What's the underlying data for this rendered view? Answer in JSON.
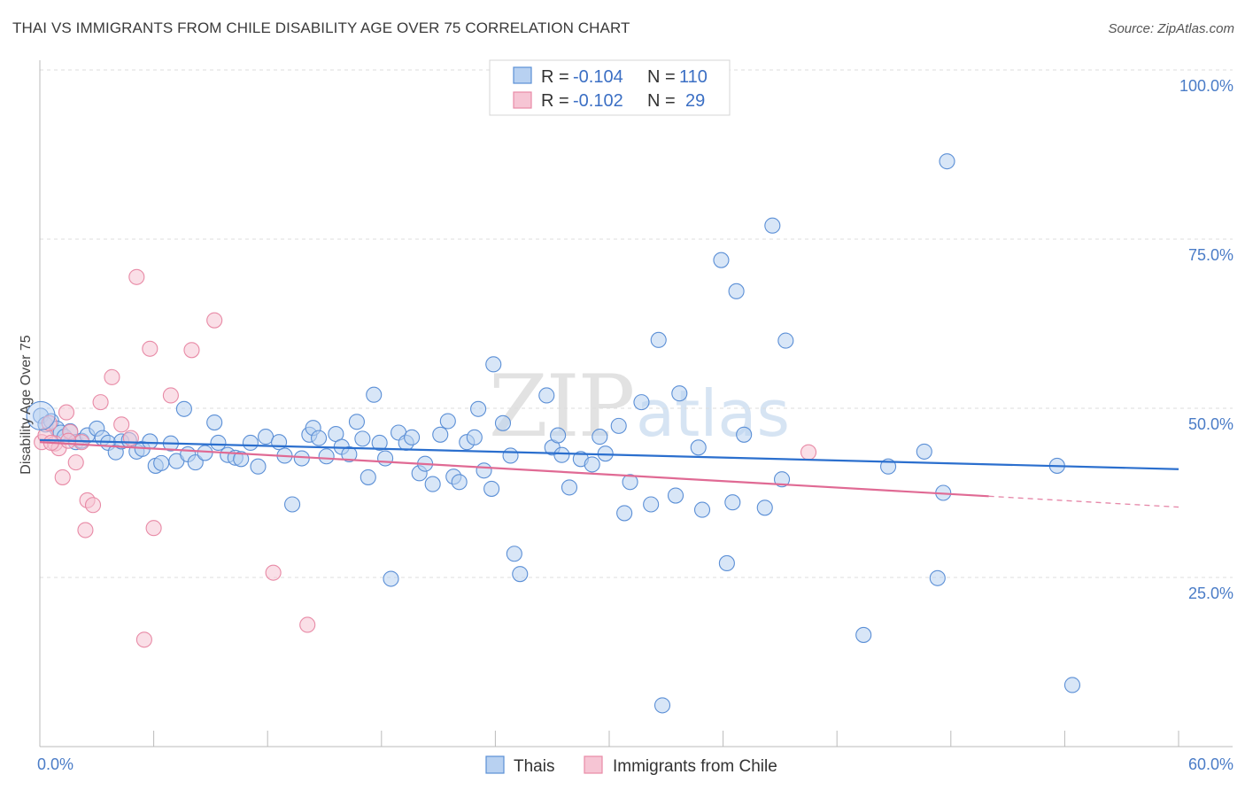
{
  "title": "THAI VS IMMIGRANTS FROM CHILE DISABILITY AGE OVER 75 CORRELATION CHART",
  "source": "Source: ZipAtlas.com",
  "watermark": {
    "part1": "ZIP",
    "part2": "atlas"
  },
  "colors": {
    "blue": "#5b8fd6",
    "blue_fill": "#b8d1f1",
    "blue_line": "#2b6fce",
    "pink": "#e88aa6",
    "pink_fill": "#f6c5d4",
    "pink_line": "#e06a94",
    "tick_text": "#4a7cc7"
  },
  "legend": {
    "rows": [
      {
        "r_label": "R =",
        "r_value": "-0.104",
        "n_label": "N =",
        "n_value": "110",
        "color": "blue"
      },
      {
        "r_label": "R =",
        "r_value": "-0.102",
        "n_label": "N =",
        "n_value": "29",
        "color": "pink"
      }
    ]
  },
  "bottom_legend": [
    {
      "label": "Thais",
      "color": "blue"
    },
    {
      "label": "Immigrants from Chile",
      "color": "pink"
    }
  ],
  "chart_data": {
    "type": "scatter",
    "ylabel": "Disability Age Over 75",
    "xlim": [
      0,
      60
    ],
    "ylim": [
      0,
      100
    ],
    "x_tick_labels": [
      "0.0%",
      "60.0%"
    ],
    "y_ticks": [
      25,
      50,
      75,
      100
    ],
    "y_tick_labels": [
      "25.0%",
      "50.0%",
      "75.0%",
      "100.0%"
    ],
    "grid": true,
    "series": [
      {
        "name": "Thais",
        "color": "blue",
        "trend": {
          "x0": 0,
          "y0": 45.3,
          "x1": 60,
          "y1": 41.0
        },
        "points": [
          [
            0.05,
            48.9
          ],
          [
            0.3,
            47.6
          ],
          [
            0.6,
            48.1
          ],
          [
            0.9,
            47.0
          ],
          [
            1.1,
            46.4
          ],
          [
            1.3,
            45.8
          ],
          [
            1.6,
            46.6
          ],
          [
            1.9,
            45.0
          ],
          [
            2.2,
            45.2
          ],
          [
            2.5,
            46.0
          ],
          [
            3.0,
            47.0
          ],
          [
            3.3,
            45.6
          ],
          [
            3.6,
            44.9
          ],
          [
            4.0,
            43.5
          ],
          [
            4.3,
            45.1
          ],
          [
            4.7,
            45.3
          ],
          [
            5.1,
            43.6
          ],
          [
            5.4,
            44.0
          ],
          [
            5.8,
            45.1
          ],
          [
            6.1,
            41.5
          ],
          [
            6.4,
            41.9
          ],
          [
            6.9,
            44.8
          ],
          [
            7.2,
            42.2
          ],
          [
            7.6,
            49.9
          ],
          [
            7.8,
            43.2
          ],
          [
            8.2,
            42.0
          ],
          [
            8.7,
            43.4
          ],
          [
            9.2,
            47.9
          ],
          [
            9.4,
            44.9
          ],
          [
            9.9,
            43.1
          ],
          [
            10.3,
            42.7
          ],
          [
            10.6,
            42.5
          ],
          [
            11.1,
            44.9
          ],
          [
            11.5,
            41.4
          ],
          [
            11.9,
            45.8
          ],
          [
            12.6,
            45.0
          ],
          [
            12.9,
            43.0
          ],
          [
            13.3,
            35.8
          ],
          [
            13.8,
            42.6
          ],
          [
            14.2,
            46.1
          ],
          [
            14.4,
            47.1
          ],
          [
            14.7,
            45.6
          ],
          [
            15.1,
            42.9
          ],
          [
            15.6,
            46.2
          ],
          [
            15.9,
            44.3
          ],
          [
            16.3,
            43.2
          ],
          [
            16.7,
            48.0
          ],
          [
            17.0,
            45.5
          ],
          [
            17.3,
            39.8
          ],
          [
            17.6,
            52.0
          ],
          [
            17.9,
            44.9
          ],
          [
            18.2,
            42.6
          ],
          [
            18.5,
            24.8
          ],
          [
            18.9,
            46.4
          ],
          [
            19.3,
            44.9
          ],
          [
            19.6,
            45.7
          ],
          [
            20.0,
            40.4
          ],
          [
            20.3,
            41.8
          ],
          [
            20.7,
            38.8
          ],
          [
            21.1,
            46.1
          ],
          [
            21.5,
            48.1
          ],
          [
            21.8,
            39.9
          ],
          [
            22.1,
            39.1
          ],
          [
            22.5,
            45.0
          ],
          [
            22.9,
            45.7
          ],
          [
            23.1,
            49.9
          ],
          [
            23.4,
            40.8
          ],
          [
            23.8,
            38.1
          ],
          [
            23.9,
            56.5
          ],
          [
            24.4,
            47.8
          ],
          [
            24.8,
            43.0
          ],
          [
            25.0,
            28.5
          ],
          [
            25.3,
            25.5
          ],
          [
            26.7,
            51.9
          ],
          [
            27.0,
            44.2
          ],
          [
            27.3,
            46.0
          ],
          [
            27.5,
            43.1
          ],
          [
            27.9,
            38.3
          ],
          [
            28.5,
            42.5
          ],
          [
            29.1,
            41.7
          ],
          [
            29.5,
            45.8
          ],
          [
            29.8,
            43.3
          ],
          [
            30.5,
            47.4
          ],
          [
            30.8,
            34.5
          ],
          [
            31.1,
            39.1
          ],
          [
            31.7,
            50.9
          ],
          [
            32.2,
            35.8
          ],
          [
            32.6,
            60.1
          ],
          [
            32.8,
            6.1
          ],
          [
            33.5,
            37.1
          ],
          [
            33.7,
            52.2
          ],
          [
            34.7,
            44.2
          ],
          [
            34.9,
            35.0
          ],
          [
            35.9,
            71.9
          ],
          [
            36.2,
            27.1
          ],
          [
            36.5,
            36.1
          ],
          [
            36.7,
            67.3
          ],
          [
            37.1,
            46.1
          ],
          [
            38.2,
            35.3
          ],
          [
            38.6,
            77.0
          ],
          [
            39.1,
            39.5
          ],
          [
            39.3,
            60.0
          ],
          [
            43.4,
            16.5
          ],
          [
            44.7,
            41.4
          ],
          [
            46.6,
            43.6
          ],
          [
            47.3,
            24.9
          ],
          [
            47.6,
            37.5
          ],
          [
            47.8,
            86.5
          ],
          [
            53.6,
            41.5
          ],
          [
            54.4,
            9.1
          ]
        ]
      },
      {
        "name": "Immigrants from Chile",
        "color": "pink",
        "trend": {
          "x0": 0,
          "y0": 45.0,
          "x1": 50,
          "y1": 37.0,
          "dash_x1": 60,
          "dash_y1": 35.4
        },
        "points": [
          [
            0.1,
            45.0
          ],
          [
            0.3,
            46.0
          ],
          [
            0.5,
            47.8
          ],
          [
            0.8,
            44.8
          ],
          [
            1.0,
            44.1
          ],
          [
            1.2,
            39.8
          ],
          [
            1.4,
            49.4
          ],
          [
            1.6,
            46.5
          ],
          [
            1.9,
            42.0
          ],
          [
            2.2,
            45.0
          ],
          [
            2.4,
            32.0
          ],
          [
            2.5,
            36.4
          ],
          [
            2.8,
            35.7
          ],
          [
            3.2,
            50.9
          ],
          [
            3.8,
            54.6
          ],
          [
            4.3,
            47.6
          ],
          [
            4.8,
            45.6
          ],
          [
            5.1,
            69.4
          ],
          [
            5.5,
            15.8
          ],
          [
            5.8,
            58.8
          ],
          [
            6.0,
            32.3
          ],
          [
            6.9,
            51.9
          ],
          [
            8.0,
            58.6
          ],
          [
            9.2,
            63.0
          ],
          [
            12.3,
            25.7
          ],
          [
            14.1,
            18.0
          ],
          [
            40.5,
            43.5
          ],
          [
            1.5,
            45.2
          ],
          [
            0.6,
            44.9
          ]
        ]
      }
    ]
  }
}
